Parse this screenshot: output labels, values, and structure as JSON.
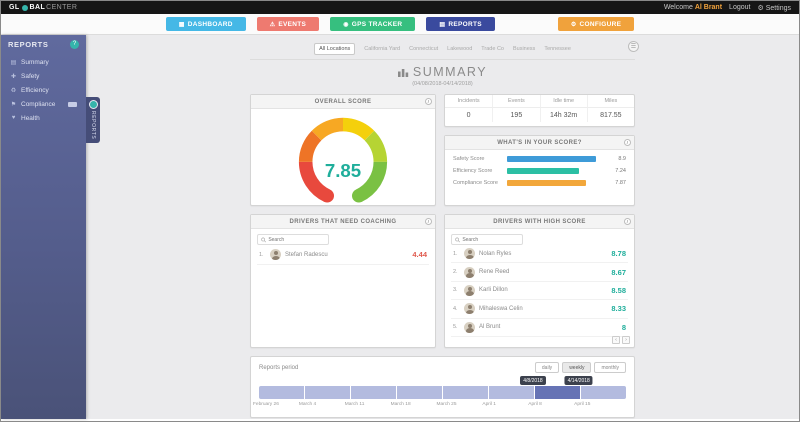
{
  "topbar": {
    "logo": {
      "prefix": "GL",
      "middle": "BAL",
      "suffix": "CENTER"
    },
    "welcome_label": "Welcome",
    "user_name": "Al Brant",
    "logout_label": "Logout",
    "settings_label": "Settings"
  },
  "nav": {
    "items": [
      {
        "label": "DASHBOARD",
        "color": "#45b8e6",
        "icon": "grid-icon"
      },
      {
        "label": "EVENTS",
        "color": "#ee7a70",
        "icon": "alert-icon"
      },
      {
        "label": "GPS TRACKER",
        "color": "#36bf7f",
        "icon": "location-icon"
      },
      {
        "label": "REPORTS",
        "color": "#3a4a9e",
        "icon": "chart-icon"
      },
      {
        "label": "CONFIGURE",
        "color": "#f0a23c",
        "icon": "gear-icon"
      }
    ]
  },
  "sidebar": {
    "title": "REPORTS",
    "help_icon": "question-icon",
    "items": [
      {
        "label": "Summary",
        "icon": "chart-bar-icon"
      },
      {
        "label": "Safety",
        "icon": "shield-icon"
      },
      {
        "label": "Efficiency",
        "icon": "leaf-icon"
      },
      {
        "label": "Compliance",
        "icon": "flag-icon"
      },
      {
        "label": "Health",
        "icon": "heart-icon"
      }
    ],
    "handle_label": "REPORTS"
  },
  "tabs": {
    "items": [
      "All Locations",
      "California Yard",
      "Connecticut",
      "Lakewood",
      "Trade Co",
      "Business",
      "Tennessee"
    ],
    "active": "All Locations"
  },
  "page": {
    "title": "SUMMARY",
    "date_range": "(04/08/2018-04/14/2018)"
  },
  "overall_score": {
    "title": "OVERALL SCORE",
    "value": "7.85",
    "value_color": "#1fae9b"
  },
  "stats": {
    "columns": [
      {
        "label": "Incidents",
        "value": "0"
      },
      {
        "label": "Events",
        "value": "195"
      },
      {
        "label": "Idle time",
        "value": "14h 32m"
      },
      {
        "label": "Miles",
        "value": "817.55"
      }
    ]
  },
  "score_breakdown": {
    "title": "WHAT'S IN YOUR SCORE?",
    "bars": [
      {
        "label": "Safety Score",
        "value": "8.9",
        "color": "#3e9bd8",
        "pct": 89
      },
      {
        "label": "Efficiency Score",
        "value": "7.24",
        "color": "#2bbfa4",
        "pct": 72
      },
      {
        "label": "Compliance Score",
        "value": "7.87",
        "color": "#f2a73b",
        "pct": 79
      }
    ]
  },
  "coaching": {
    "title": "DRIVERS THAT NEED COACHING",
    "search_placeholder": "Search",
    "score_color": "#e05a4e",
    "rows": [
      {
        "rank": "1.",
        "name": "Stefan Radescu",
        "score": "4.44"
      }
    ]
  },
  "high_score": {
    "title": "DRIVERS WITH HIGH SCORE",
    "search_placeholder": "Search",
    "score_color": "#1fae9b",
    "rows": [
      {
        "rank": "1.",
        "name": "Nolan Ryles",
        "score": "8.78"
      },
      {
        "rank": "2.",
        "name": "Rene Reed",
        "score": "8.67"
      },
      {
        "rank": "3.",
        "name": "Karli Dillon",
        "score": "8.58"
      },
      {
        "rank": "4.",
        "name": "Mihaleswa Celin",
        "score": "8.33"
      },
      {
        "rank": "5.",
        "name": "Al Brunt",
        "score": "8"
      }
    ],
    "pagination": {
      "prev": "‹",
      "next": "›"
    }
  },
  "period": {
    "label": "Reports period",
    "range_buttons": [
      "daily",
      "weekly",
      "monthly"
    ],
    "active_range": "weekly",
    "weeks": [
      "February 26",
      "March 4",
      "March 11",
      "March 18",
      "March 25",
      "April 1",
      "April 8",
      "April 15"
    ],
    "selected_index": 6,
    "tooltip_start": "4/8/2018",
    "tooltip_end": "4/14/2018",
    "bar_color": "#b3bbdf",
    "selected_color": "#6673b5"
  }
}
